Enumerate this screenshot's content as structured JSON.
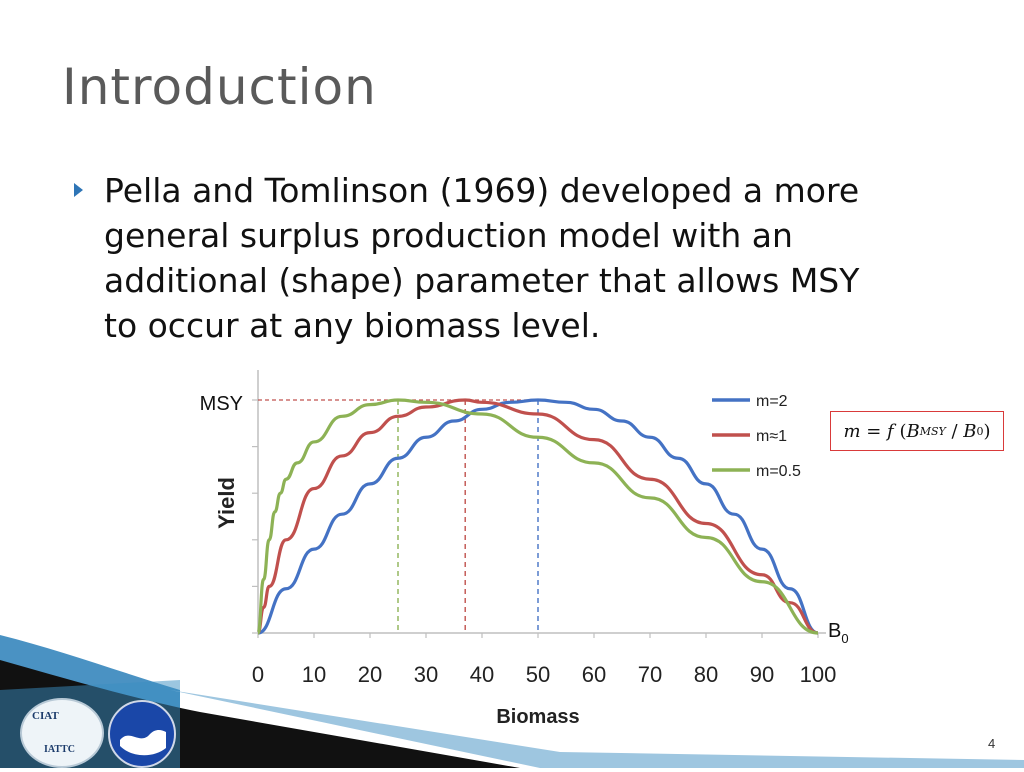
{
  "slide": {
    "title": "Introduction",
    "bullet": "Pella and Tomlinson (1969) developed a more\ngeneral surplus production model with an\nadditional (shape) parameter that allows MSY\nto occur at any biomass level.",
    "page_number": "4",
    "logo_text_top": "CIAT",
    "logo_text_bottom": "IATTC"
  },
  "formula": {
    "m": "m",
    "eq": " = ",
    "f": "f",
    "open": " (",
    "b1": "B",
    "b1_sub": "MSY",
    "slash": " / ",
    "b2": "B",
    "b2_sub": "0",
    "close": ")"
  },
  "colors": {
    "m2": "#4472c4",
    "m1": "#c0504d",
    "m05": "#8db255",
    "accent": "#2e75b6"
  },
  "chart_data": {
    "type": "line",
    "xlabel": "Biomass",
    "ylabel": "Yield",
    "xlim": [
      0,
      100
    ],
    "ylim": [
      0,
      1
    ],
    "x_ticks": [
      0,
      10,
      20,
      30,
      40,
      50,
      60,
      70,
      80,
      90,
      100
    ],
    "msy_label": "MSY",
    "b0_label": "B",
    "b0_sub": "0",
    "legend_position": "top-right",
    "series": [
      {
        "name": "m=2",
        "color": "#4472c4",
        "msy_biomass": 50,
        "x": [
          0,
          5,
          10,
          15,
          20,
          25,
          30,
          35,
          40,
          45,
          50,
          55,
          60,
          65,
          70,
          75,
          80,
          85,
          90,
          95,
          100
        ],
        "y": [
          0,
          0.19,
          0.36,
          0.51,
          0.64,
          0.75,
          0.84,
          0.91,
          0.96,
          0.99,
          1.0,
          0.99,
          0.96,
          0.91,
          0.84,
          0.75,
          0.64,
          0.51,
          0.36,
          0.19,
          0
        ]
      },
      {
        "name": "m≈1",
        "color": "#c0504d",
        "msy_biomass": 37,
        "x": [
          0,
          1,
          2,
          5,
          10,
          15,
          20,
          25,
          30,
          37,
          40,
          50,
          60,
          70,
          80,
          90,
          95,
          100
        ],
        "y": [
          0,
          0.11,
          0.2,
          0.4,
          0.62,
          0.76,
          0.86,
          0.93,
          0.97,
          1.0,
          0.99,
          0.94,
          0.83,
          0.66,
          0.47,
          0.25,
          0.13,
          0
        ]
      },
      {
        "name": "m=0.5",
        "color": "#8db255",
        "msy_biomass": 25,
        "x": [
          0,
          1,
          2,
          3,
          4,
          5,
          7,
          10,
          15,
          20,
          25,
          30,
          40,
          50,
          60,
          70,
          80,
          90,
          100
        ],
        "y": [
          0,
          0.23,
          0.4,
          0.52,
          0.6,
          0.66,
          0.73,
          0.82,
          0.93,
          0.98,
          1.0,
          0.99,
          0.94,
          0.84,
          0.73,
          0.58,
          0.41,
          0.22,
          0
        ]
      }
    ]
  }
}
